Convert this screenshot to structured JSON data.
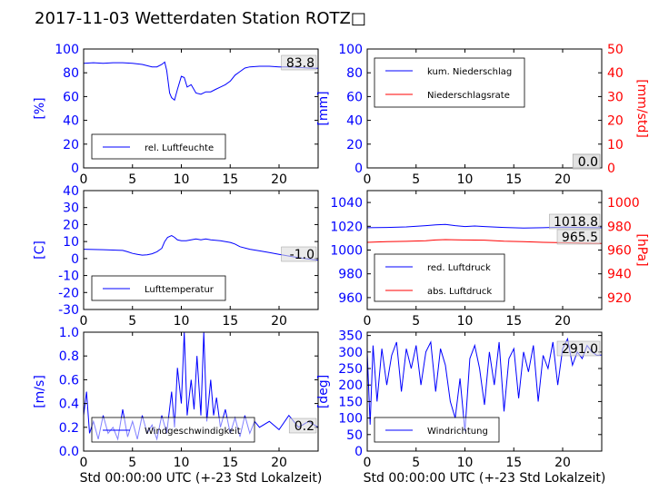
{
  "title": "2017-11-03 Wetterdaten Station ROTZ□",
  "colors": {
    "blue": "#0000ff",
    "red": "#ff0000",
    "black": "#000000"
  },
  "chart_data": [
    {
      "id": "humidity",
      "type": "line",
      "xlim": [
        0,
        24
      ],
      "xticks": [
        0,
        5,
        10,
        15,
        20
      ],
      "ylim": [
        0,
        100
      ],
      "yticks": [
        0,
        20,
        40,
        60,
        80,
        100
      ],
      "ylabel": "[%]",
      "grid": false,
      "legend_position": "lower-left",
      "annotations": [
        "83.8"
      ],
      "series": [
        {
          "name": "rel. Luftfeuchte",
          "color": "#0000ff",
          "x": [
            0,
            1,
            2,
            3,
            4,
            5,
            6,
            7,
            7.5,
            8,
            8.3,
            8.5,
            8.8,
            9,
            9.3,
            9.6,
            10,
            10.3,
            10.6,
            11,
            11.5,
            12,
            12.5,
            13,
            13.5,
            14,
            14.5,
            15,
            15.5,
            16,
            16.5,
            17,
            18,
            19,
            20,
            21,
            22,
            23,
            24
          ],
          "y": [
            88,
            88.5,
            88,
            88.5,
            88.5,
            88,
            87,
            85,
            85,
            87,
            89,
            82,
            63,
            59,
            57,
            66,
            77,
            76,
            68,
            70,
            63,
            62,
            64,
            64,
            66,
            68,
            70,
            73,
            78,
            81,
            84,
            85,
            85.5,
            85.5,
            85,
            85,
            84.5,
            84,
            83.8
          ]
        }
      ]
    },
    {
      "id": "precipitation",
      "type": "line",
      "xlim": [
        0,
        24
      ],
      "xticks": [
        0,
        5,
        10,
        15,
        20
      ],
      "ylim": [
        0,
        100
      ],
      "yticks": [
        0,
        20,
        40,
        60,
        80,
        100
      ],
      "ylabel": "[mm]",
      "y2lim": [
        0,
        50
      ],
      "y2ticks": [
        0,
        10,
        20,
        30,
        40,
        50
      ],
      "y2label": "[mm/std]",
      "grid": false,
      "legend_position": "upper-left",
      "annotations": [
        "0.0",
        "0.0"
      ],
      "series": [
        {
          "name": "kum. Niederschlag",
          "color": "#0000ff",
          "axis": "left",
          "x": [
            0,
            24
          ],
          "y": [
            0,
            0
          ]
        },
        {
          "name": "Niederschlagsrate",
          "color": "#ff0000",
          "axis": "right",
          "x": [
            0,
            24
          ],
          "y": [
            0,
            0
          ]
        }
      ]
    },
    {
      "id": "temperature",
      "type": "line",
      "xlim": [
        0,
        24
      ],
      "xticks": [
        0,
        5,
        10,
        15,
        20
      ],
      "ylim": [
        -30,
        40
      ],
      "yticks": [
        -30,
        -20,
        -10,
        0,
        10,
        20,
        30,
        40
      ],
      "ylabel": "[C]",
      "grid": false,
      "legend_position": "lower-left",
      "annotations": [
        "-1.0"
      ],
      "series": [
        {
          "name": "Lufttemperatur",
          "color": "#0000ff",
          "x": [
            0,
            1,
            2,
            3,
            4,
            4.5,
            5,
            5.5,
            6,
            6.5,
            7,
            7.5,
            8,
            8.3,
            8.6,
            9,
            9.3,
            9.6,
            10,
            10.5,
            11,
            11.5,
            12,
            12.5,
            13,
            14,
            15,
            15.5,
            16,
            17,
            18,
            19,
            20,
            21,
            22,
            23,
            24
          ],
          "y": [
            5.5,
            5.3,
            5.2,
            5.0,
            4.8,
            4.0,
            3.0,
            2.5,
            2.0,
            2.2,
            2.8,
            4.0,
            6.0,
            10,
            12.5,
            13.5,
            12.5,
            11,
            10.5,
            10.5,
            11,
            11.5,
            11,
            11.5,
            11,
            10.5,
            9.5,
            8.5,
            7,
            5.5,
            4.5,
            3.5,
            2.5,
            1.5,
            0.5,
            -0.3,
            -1.0
          ]
        }
      ]
    },
    {
      "id": "pressure",
      "type": "line",
      "xlim": [
        0,
        24
      ],
      "xticks": [
        0,
        5,
        10,
        15,
        20
      ],
      "ylim": [
        950,
        1050
      ],
      "yticks": [
        960,
        980,
        1000,
        1020,
        1040
      ],
      "y2lim": [
        910,
        1010
      ],
      "y2ticks": [
        920,
        940,
        960,
        980,
        1000
      ],
      "y2label": "[hPa]",
      "grid": false,
      "legend_position": "lower-left",
      "annotations": [
        "1018.8",
        "965.5"
      ],
      "series": [
        {
          "name": "red. Luftdruck",
          "color": "#0000ff",
          "axis": "left",
          "x": [
            0,
            2,
            4,
            6,
            7,
            8,
            9,
            10,
            11,
            12,
            14,
            16,
            18,
            20,
            22,
            24
          ],
          "y": [
            1018.8,
            1019,
            1019.5,
            1020.5,
            1021.2,
            1021.5,
            1020.5,
            1019.8,
            1020.2,
            1019.8,
            1019,
            1018.5,
            1018.8,
            1019.2,
            1019,
            1018.8
          ]
        },
        {
          "name": "abs. Luftdruck",
          "color": "#ff0000",
          "axis": "right",
          "x": [
            0,
            2,
            4,
            6,
            7,
            8,
            10,
            12,
            14,
            16,
            18,
            20,
            22,
            24
          ],
          "y": [
            966.5,
            967,
            967.3,
            967.8,
            968.5,
            968.8,
            968.5,
            968.3,
            967.5,
            967,
            966.5,
            966.2,
            965.8,
            965.5
          ]
        }
      ]
    },
    {
      "id": "wind-speed",
      "type": "line",
      "xlim": [
        0,
        24
      ],
      "xticks": [
        0,
        5,
        10,
        15,
        20
      ],
      "ylim": [
        0,
        1.0
      ],
      "yticks": [
        0.0,
        0.2,
        0.4,
        0.6,
        0.8,
        1.0
      ],
      "ylabel": "[m/s]",
      "xlabel": "Std 00:00:00 UTC (+-23 Std Lokalzeit)",
      "grid": false,
      "legend_position": "lower-left",
      "annotations": [
        "0.2"
      ],
      "series": [
        {
          "name": "Windgeschwindigkeit",
          "color": "#0000ff",
          "x": [
            0,
            0.3,
            0.6,
            1,
            1.5,
            2,
            2.5,
            3,
            3.5,
            4,
            4.5,
            5,
            5.5,
            6,
            6.5,
            7,
            7.5,
            8,
            8.5,
            9,
            9.3,
            9.6,
            10,
            10.3,
            10.6,
            11,
            11.3,
            11.6,
            12,
            12.3,
            12.6,
            13,
            13.3,
            13.6,
            14,
            14.5,
            15,
            15.5,
            16,
            16.5,
            17,
            17.5,
            18,
            19,
            20,
            21,
            22,
            23,
            24
          ],
          "y": [
            0.3,
            0.5,
            0.15,
            0.25,
            0.1,
            0.3,
            0.15,
            0.2,
            0.1,
            0.35,
            0.12,
            0.25,
            0.1,
            0.3,
            0.15,
            0.22,
            0.1,
            0.3,
            0.15,
            0.5,
            0.2,
            0.7,
            0.4,
            1.0,
            0.3,
            0.6,
            0.35,
            0.8,
            0.3,
            1.0,
            0.25,
            0.6,
            0.3,
            0.45,
            0.2,
            0.35,
            0.15,
            0.28,
            0.12,
            0.3,
            0.15,
            0.25,
            0.2,
            0.25,
            0.18,
            0.3,
            0.2,
            0.25,
            0.2
          ]
        }
      ]
    },
    {
      "id": "wind-direction",
      "type": "line",
      "xlim": [
        0,
        24
      ],
      "xticks": [
        0,
        5,
        10,
        15,
        20
      ],
      "ylim": [
        0,
        360
      ],
      "yticks": [
        0,
        50,
        100,
        150,
        200,
        250,
        300,
        350
      ],
      "ylabel": "[deg]",
      "xlabel": "Std 00:00:00 UTC (+-23 Std Lokalzeit)",
      "grid": false,
      "legend_position": "lower-left",
      "annotations": [
        "291.0"
      ],
      "series": [
        {
          "name": "Windrichtung",
          "color": "#0000ff",
          "x": [
            0,
            0.3,
            0.6,
            1,
            1.5,
            2,
            2.5,
            3,
            3.5,
            4,
            4.5,
            5,
            5.5,
            6,
            6.5,
            7,
            7.5,
            8,
            8.5,
            9,
            9.5,
            10,
            10.5,
            11,
            11.5,
            12,
            12.5,
            13,
            13.5,
            14,
            14.5,
            15,
            15.5,
            16,
            16.5,
            17,
            17.5,
            18,
            18.5,
            19,
            19.5,
            20,
            20.5,
            21,
            21.5,
            22,
            22.5,
            23,
            23.5,
            24
          ],
          "y": [
            300,
            80,
            320,
            150,
            310,
            200,
            290,
            330,
            180,
            310,
            250,
            320,
            200,
            300,
            330,
            180,
            310,
            260,
            150,
            100,
            220,
            60,
            280,
            320,
            250,
            140,
            300,
            200,
            330,
            120,
            280,
            310,
            160,
            300,
            240,
            320,
            150,
            290,
            250,
            330,
            200,
            310,
            340,
            260,
            300,
            280,
            320,
            300,
            290,
            291
          ]
        }
      ]
    }
  ]
}
